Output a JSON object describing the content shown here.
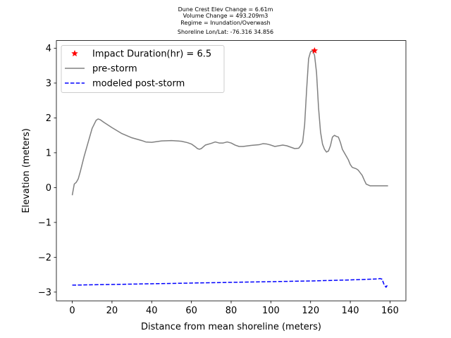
{
  "chart_data": {
    "type": "line",
    "title_lines": [
      "Dune Crest Elev Change = 6.61m",
      "Volume Change = 493.209m3",
      "Regime = Inundation/Overwash",
      "Shoreline Lon/Lat: -76.316 34.856"
    ],
    "xlabel": "Distance from mean shoreline (meters)",
    "ylabel": "Elevation (meters)",
    "xlim": [
      -8,
      168
    ],
    "ylim": [
      -3.25,
      4.22
    ],
    "xticks": [
      0,
      20,
      40,
      60,
      80,
      100,
      120,
      140,
      160
    ],
    "yticks": [
      -3,
      -2,
      -1,
      0,
      1,
      2,
      3,
      4
    ],
    "grid": false,
    "legend_position": "upper-left",
    "series": [
      {
        "name": "Impact Duration(hr) = 6.5",
        "kind": "marker",
        "color": "#ff0000",
        "x": [
          122
        ],
        "y": [
          3.93
        ]
      },
      {
        "name": "pre-storm",
        "kind": "line",
        "color": "#808080",
        "x": [
          0,
          1,
          2,
          3,
          4,
          6,
          8,
          10,
          12,
          13,
          14,
          16,
          20,
          25,
          30,
          35,
          37,
          40,
          45,
          50,
          55,
          58,
          60,
          62,
          63,
          64,
          65,
          67,
          70,
          72,
          74,
          76,
          78,
          80,
          82,
          84,
          86,
          90,
          94,
          96,
          98,
          100,
          102,
          104,
          106,
          108,
          110,
          112,
          114,
          115,
          116,
          117,
          118,
          119,
          120,
          121,
          122,
          123,
          124,
          125,
          126,
          127,
          128,
          129,
          130,
          131,
          132,
          133,
          134,
          135,
          136,
          138,
          139,
          140,
          141,
          142,
          143,
          144,
          146,
          147,
          148,
          150,
          152,
          153,
          154,
          156,
          157,
          158,
          159
        ],
        "y": [
          -0.22,
          0.1,
          0.15,
          0.25,
          0.45,
          0.9,
          1.3,
          1.7,
          1.93,
          1.97,
          1.95,
          1.87,
          1.72,
          1.55,
          1.43,
          1.35,
          1.31,
          1.3,
          1.34,
          1.35,
          1.33,
          1.29,
          1.25,
          1.17,
          1.12,
          1.1,
          1.12,
          1.22,
          1.27,
          1.31,
          1.28,
          1.28,
          1.31,
          1.28,
          1.22,
          1.18,
          1.18,
          1.21,
          1.23,
          1.26,
          1.25,
          1.22,
          1.18,
          1.2,
          1.22,
          1.2,
          1.16,
          1.12,
          1.13,
          1.2,
          1.3,
          1.8,
          2.8,
          3.7,
          3.9,
          3.93,
          3.8,
          3.3,
          2.3,
          1.6,
          1.25,
          1.1,
          1.02,
          1.05,
          1.2,
          1.45,
          1.5,
          1.47,
          1.45,
          1.3,
          1.1,
          0.9,
          0.8,
          0.66,
          0.58,
          0.56,
          0.54,
          0.5,
          0.35,
          0.22,
          0.1,
          0.05,
          0.05,
          0.05,
          0.05,
          0.05,
          0.05,
          0.05,
          0.05
        ]
      },
      {
        "name": "modeled post-storm",
        "kind": "dashed-line",
        "color": "#0000ff",
        "x": [
          0,
          20,
          40,
          60,
          80,
          100,
          120,
          140,
          150,
          154,
          155,
          156,
          157,
          158,
          159
        ],
        "y": [
          -2.8,
          -2.78,
          -2.76,
          -2.74,
          -2.72,
          -2.7,
          -2.68,
          -2.65,
          -2.63,
          -2.62,
          -2.61,
          -2.63,
          -2.78,
          -2.86,
          -2.77
        ]
      }
    ]
  }
}
